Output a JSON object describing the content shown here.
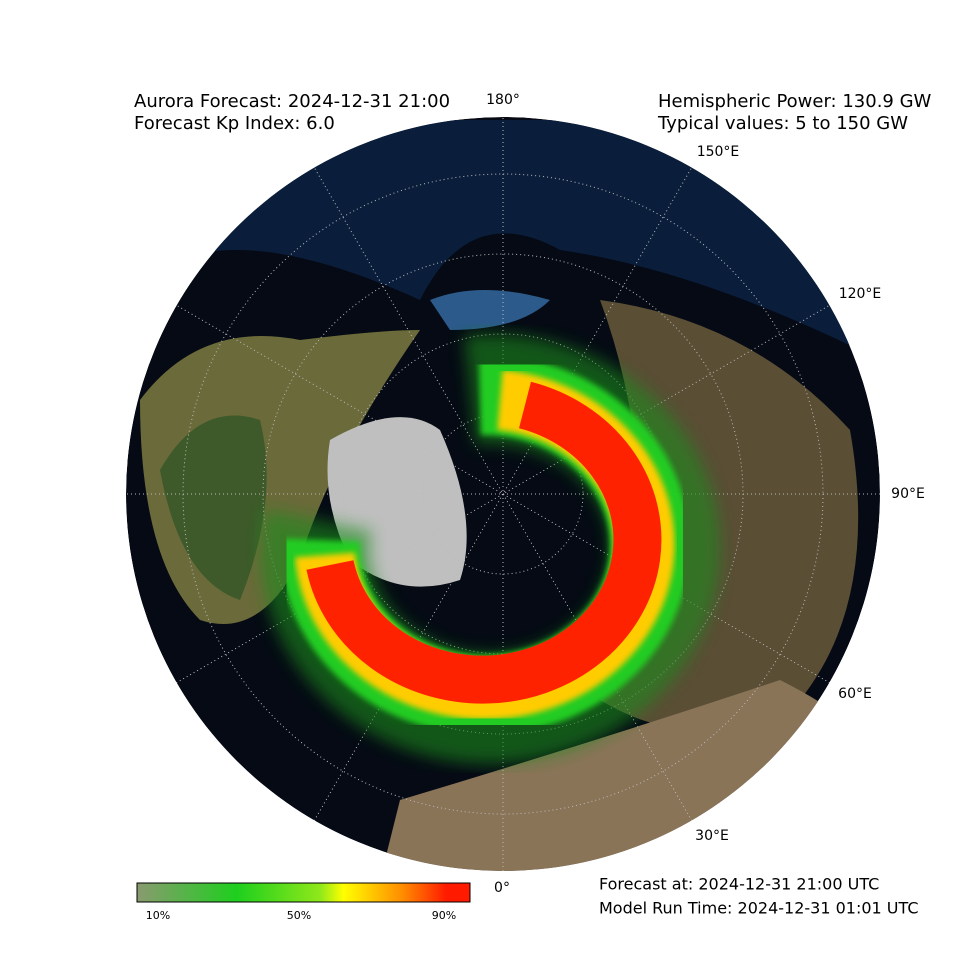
{
  "header": {
    "title": "Aurora Forecast: 2024-12-31 21:00",
    "kp": "Forecast Kp Index: 6.0",
    "power": "Hemispheric Power: 130.9 GW",
    "typical": "Typical values: 5 to 150 GW"
  },
  "longitude_labels": [
    "180°",
    "150°E",
    "120°E",
    "90°E",
    "60°E",
    "30°E",
    "0°"
  ],
  "colorbar": {
    "labels": [
      "10%",
      "50%",
      "90%"
    ]
  },
  "footer": {
    "forecast_at": "Forecast at: 2024-12-31 21:00 UTC",
    "model_run": "Model Run Time: 2024-12-31 01:01 UTC"
  }
}
